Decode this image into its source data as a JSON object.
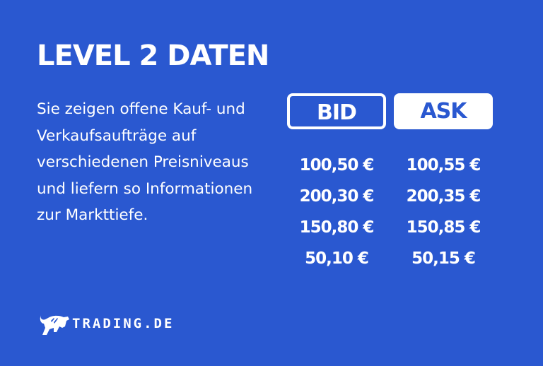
{
  "title": "LEVEL 2 DATEN",
  "description": "Sie zeigen offene Kauf- und Verkaufsaufträge auf verschiedenen Preisniveaus und liefern so Informationen zur Markttiefe.",
  "bid": {
    "label": "BID",
    "values": [
      "100,50 €",
      "200,30 €",
      "150,80 €",
      "50,10 €"
    ]
  },
  "ask": {
    "label": "ASK",
    "values": [
      "100,55 €",
      "200,35 €",
      "150,85 €",
      "50,15 €"
    ]
  },
  "logo": {
    "text": "TRADING.DE",
    "icon": "bull-icon"
  },
  "colors": {
    "background": "#2a58d0",
    "foreground": "#ffffff"
  }
}
